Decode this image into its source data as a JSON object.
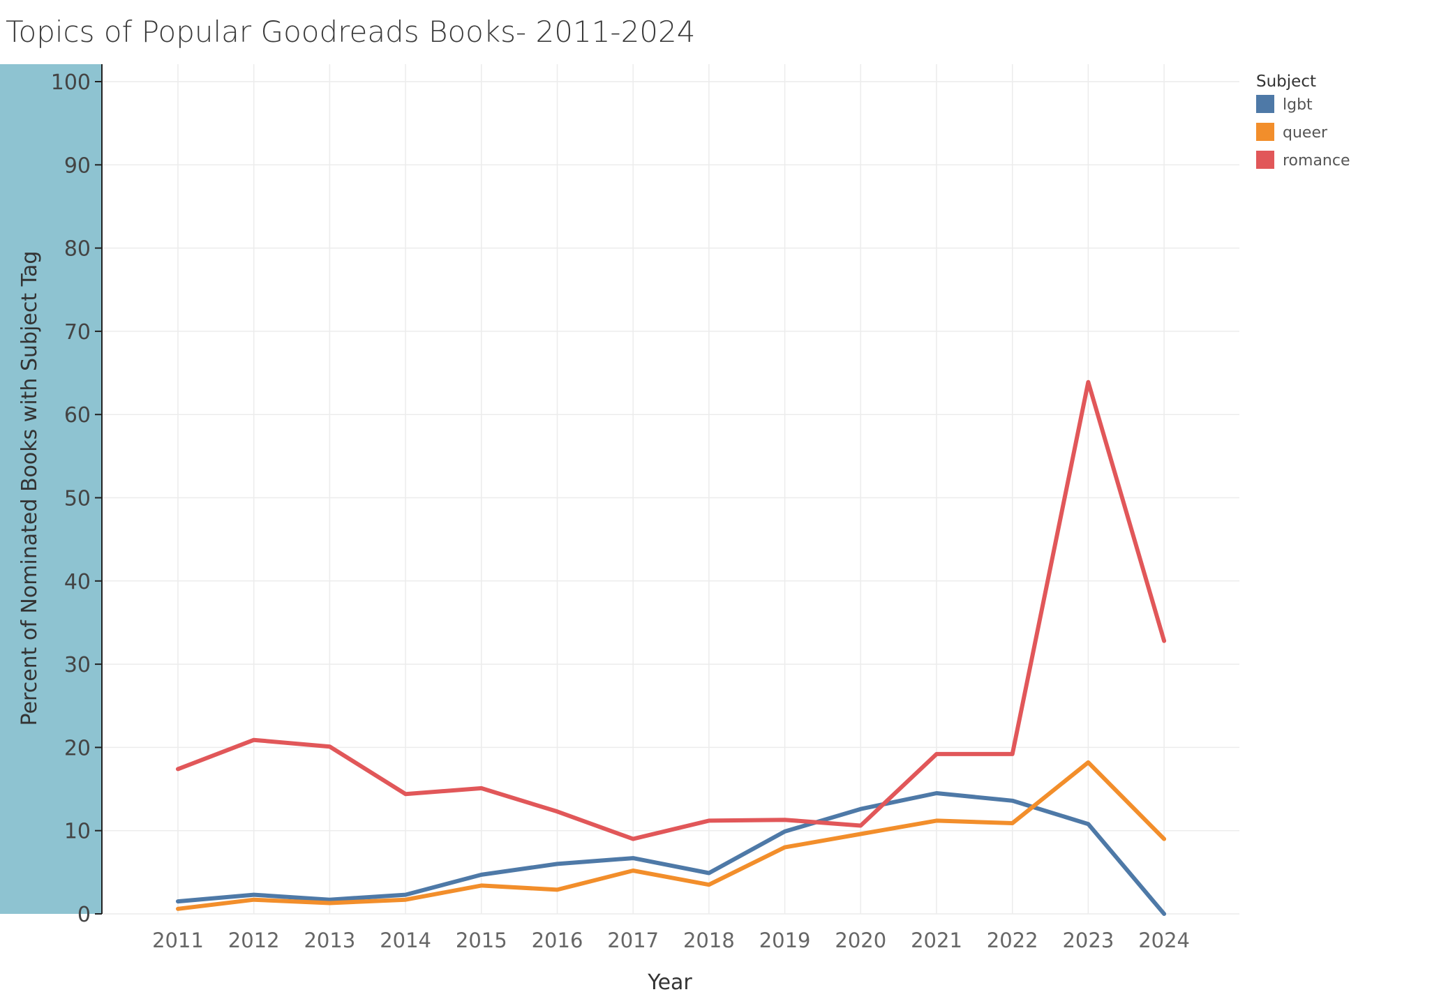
{
  "chart_data": {
    "type": "line",
    "title": "Topics of Popular Goodreads Books- 2011-2024",
    "xlabel": "Year",
    "ylabel": "Percent of Nominated Books with Subject Tag",
    "x": [
      "2011",
      "2012",
      "2013",
      "2014",
      "2015",
      "2016",
      "2017",
      "2018",
      "2019",
      "2020",
      "2021",
      "2022",
      "2023",
      "2024"
    ],
    "y_ticks": [
      "0",
      "10",
      "20",
      "30",
      "40",
      "50",
      "60",
      "70",
      "80",
      "90",
      "100"
    ],
    "ylim": [
      0,
      100
    ],
    "grid": true,
    "legend": {
      "title": "Subject",
      "placement": "top-right"
    },
    "series": [
      {
        "name": "lgbt",
        "color": "#4e79a7",
        "values": [
          1.5,
          2.3,
          1.7,
          2.3,
          4.7,
          6.0,
          6.7,
          4.9,
          9.9,
          12.6,
          14.5,
          13.6,
          10.8,
          0.0
        ]
      },
      {
        "name": "queer",
        "color": "#f28e2b",
        "values": [
          0.6,
          1.7,
          1.3,
          1.7,
          3.4,
          2.9,
          5.2,
          3.5,
          8.0,
          9.6,
          11.2,
          10.9,
          18.2,
          9.0
        ]
      },
      {
        "name": "romance",
        "color": "#e15759",
        "values": [
          17.4,
          20.9,
          20.1,
          14.4,
          15.1,
          12.3,
          9.0,
          11.2,
          11.3,
          10.6,
          19.2,
          19.2,
          63.9,
          32.8
        ]
      }
    ],
    "axis_band_color": "#8ec3d1"
  }
}
